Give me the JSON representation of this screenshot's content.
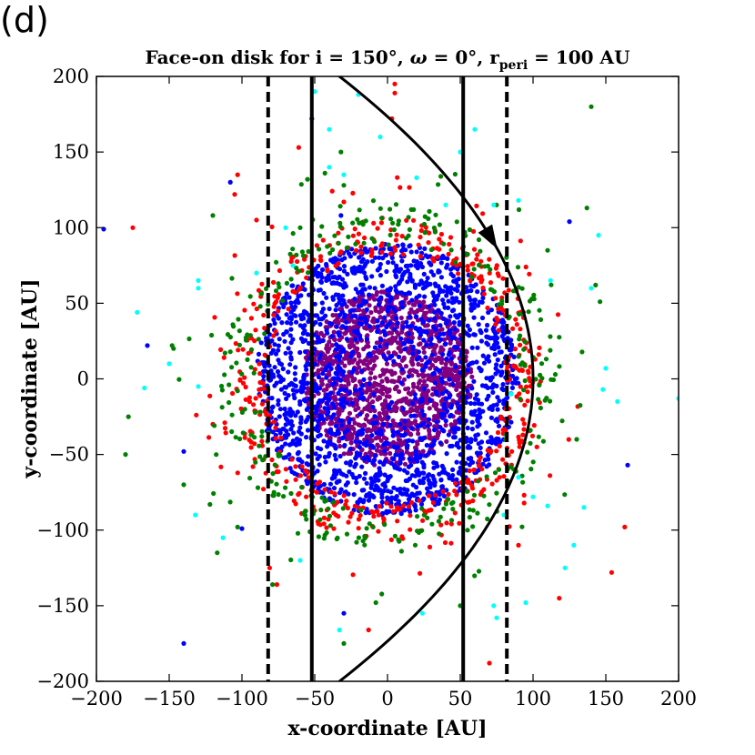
{
  "panel_label": "(d)",
  "chart_data": {
    "type": "scatter",
    "title_parts": {
      "prefix": "Face-on disk for i = 150°, ",
      "omega_symbol": "ω",
      "omega_rest": " = 0°, r",
      "peri_sub": "peri",
      "suffix": " = 100 AU"
    },
    "xlabel": "x-coordinate [AU]",
    "ylabel": "y-coordinate [AU]",
    "xlim": [
      -200,
      200
    ],
    "ylim": [
      -200,
      200
    ],
    "xticks": [
      -200,
      -150,
      -100,
      -50,
      0,
      50,
      100,
      150,
      200
    ],
    "yticks": [
      -200,
      -150,
      -100,
      -50,
      0,
      50,
      100,
      150,
      200
    ],
    "xtick_labels": [
      "−200",
      "−150",
      "−100",
      "−50",
      "0",
      "50",
      "100",
      "150",
      "200"
    ],
    "ytick_labels": [
      "−200",
      "−150",
      "−100",
      "−50",
      "0",
      "50",
      "100",
      "150",
      "200"
    ],
    "grid": false,
    "colors": {
      "purple": "#800080",
      "blue": "#0000ff",
      "red": "#ff0000",
      "green": "#008000",
      "cyan": "#00ffff"
    },
    "vertical_lines": [
      {
        "x": -82,
        "style": "dashed"
      },
      {
        "x": -52,
        "style": "solid"
      },
      {
        "x": 52,
        "style": "solid"
      },
      {
        "x": 82,
        "style": "dashed"
      }
    ],
    "orbit": {
      "shape": "parabola",
      "pericenter": [
        100,
        0
      ],
      "x_at_y_200": -33,
      "arrow_direction": "clockwise",
      "arrow_position": [
        60,
        100
      ]
    },
    "series": [
      {
        "color_key": "purple",
        "distribution": "dense core",
        "core_radius": 58,
        "count": 1400,
        "outliers": []
      },
      {
        "color_key": "blue",
        "distribution": "dense disk",
        "core_radius": 90,
        "count": 1700,
        "outliers": [
          [
            -195,
            99
          ],
          [
            -140,
            -175
          ],
          [
            -165,
            22
          ],
          [
            -108,
            130
          ],
          [
            165,
            -57
          ],
          [
            -52,
            172
          ],
          [
            -30,
            -155
          ],
          [
            -140,
            -48
          ],
          [
            -32,
            108
          ],
          [
            125,
            104
          ],
          [
            -100,
            -99
          ]
        ]
      },
      {
        "color_key": "red",
        "distribution": "disk with halo",
        "core_radius": 100,
        "count": 500,
        "outliers": [
          [
            -175,
            100
          ],
          [
            -103,
            135
          ],
          [
            -105,
            122
          ],
          [
            -61,
            153
          ],
          [
            -30,
            117
          ],
          [
            5,
            195
          ],
          [
            5,
            189
          ],
          [
            3,
            172
          ],
          [
            163,
            -98
          ],
          [
            154,
            -128
          ],
          [
            70,
            -188
          ],
          [
            -13,
            -166
          ],
          [
            -76,
            -136
          ],
          [
            -81,
            -125
          ],
          [
            90,
            -110
          ],
          [
            118,
            -145
          ],
          [
            -120,
            -30
          ],
          [
            -90,
            105
          ]
        ]
      },
      {
        "color_key": "green",
        "distribution": "sparse halo",
        "core_radius": 108,
        "count": 330,
        "outliers": [
          [
            140,
            180
          ],
          [
            137,
            113
          ],
          [
            143,
            62
          ],
          [
            146,
            51
          ],
          [
            -178,
            -25
          ],
          [
            -180,
            -50
          ],
          [
            -147,
            20
          ],
          [
            -148,
            22
          ],
          [
            -140,
            -70
          ],
          [
            -120,
            108
          ],
          [
            -122,
            -83
          ],
          [
            -117,
            -115
          ],
          [
            -103,
            -98
          ],
          [
            -55,
            132
          ],
          [
            -32,
            150
          ],
          [
            -98,
            -20
          ],
          [
            -79,
            -136
          ],
          [
            -30,
            -175
          ],
          [
            130,
            -40
          ],
          [
            110,
            85
          ],
          [
            55,
            -100
          ],
          [
            -8,
            -148
          ],
          [
            -60,
            100
          ],
          [
            -30,
            128
          ],
          [
            50,
            -150
          ]
        ]
      },
      {
        "color_key": "cyan",
        "distribution": "scattered",
        "core_radius": 0,
        "count": 0,
        "outliers": [
          [
            200,
            -13
          ],
          [
            -172,
            44
          ],
          [
            -167,
            -6
          ],
          [
            -150,
            10
          ],
          [
            -130,
            60
          ],
          [
            -113,
            -105
          ],
          [
            -132,
            -90
          ],
          [
            -130,
            -5
          ],
          [
            -90,
            70
          ],
          [
            -65,
            75
          ],
          [
            -50,
            190
          ],
          [
            -40,
            165
          ],
          [
            -33,
            -166
          ],
          [
            -20,
            188
          ],
          [
            -30,
            135
          ],
          [
            -40,
            140
          ],
          [
            20,
            133
          ],
          [
            24,
            -155
          ],
          [
            50,
            150
          ],
          [
            40,
            115
          ],
          [
            73,
            115
          ],
          [
            90,
            118
          ],
          [
            95,
            -148
          ],
          [
            100,
            -78
          ],
          [
            110,
            -84
          ],
          [
            128,
            -110
          ],
          [
            122,
            -125
          ],
          [
            140,
            60
          ],
          [
            145,
            95
          ],
          [
            150,
            7
          ],
          [
            148,
            -7
          ],
          [
            158,
            -15
          ],
          [
            135,
            -85
          ],
          [
            112,
            65
          ],
          [
            80,
            -90
          ],
          [
            90,
            -65
          ],
          [
            85,
            -10
          ],
          [
            75,
            -158
          ],
          [
            73,
            -150
          ],
          [
            -60,
            -120
          ],
          [
            -5,
            160
          ],
          [
            60,
            165
          ],
          [
            -70,
            100
          ],
          [
            -130,
            65
          ]
        ]
      }
    ]
  }
}
